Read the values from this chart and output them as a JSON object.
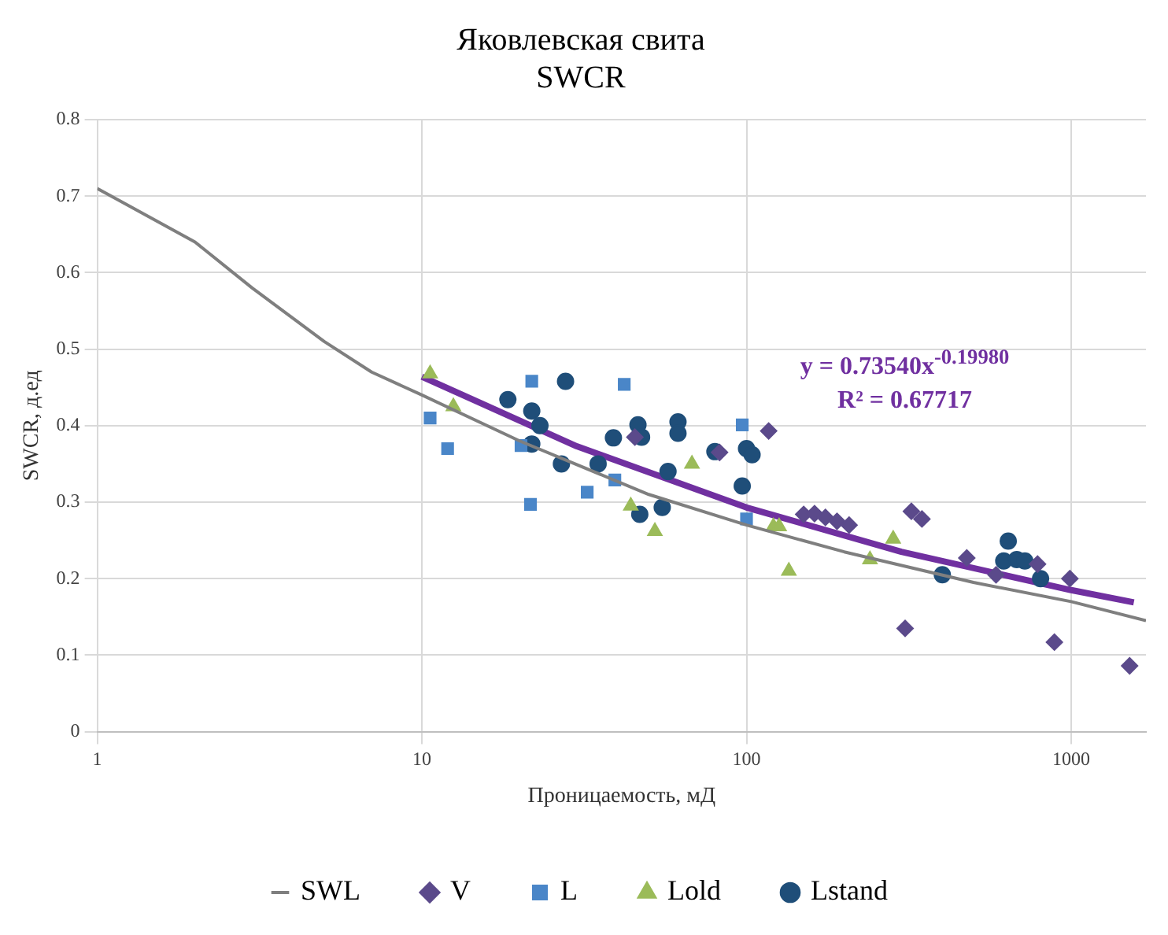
{
  "chart_data": {
    "type": "scatter",
    "title": "Яковлевская свита",
    "subtitle": "SWCR",
    "xlabel": "Проницаемость, мД",
    "ylabel": "SWCR, д.ед",
    "log": "x",
    "xlim": [
      1,
      1700
    ],
    "xticks": [
      1,
      10,
      100,
      1000
    ],
    "ylim": [
      0,
      0.8
    ],
    "yticks": [
      0,
      {
        "value": 0.1,
        "label": "0.1"
      },
      {
        "value": 0.2,
        "label": "0.2"
      },
      {
        "value": 0.3,
        "label": "0.3"
      },
      {
        "value": 0.4,
        "label": "0.4"
      },
      {
        "value": 0.5,
        "label": "0.5"
      },
      {
        "value": 0.6,
        "label": "0.6"
      },
      {
        "value": 0.7,
        "label": "0.7"
      },
      {
        "value": 0.8,
        "label": "0.8"
      }
    ],
    "grid": true,
    "legend": "bottom",
    "annotations": [
      "y = 0.73540x$^{-0.19980}$\nR² = 0.67717"
    ],
    "series": [
      {
        "name": "SWL",
        "type": "line",
        "color": "#7f7f7f",
        "marker": "none",
        "x": [
          1,
          2,
          3,
          5,
          7,
          10,
          20,
          50,
          100,
          200,
          500,
          1000,
          1700
        ],
        "values": [
          0.71,
          0.64,
          0.58,
          0.51,
          0.47,
          0.44,
          0.38,
          0.31,
          0.27,
          0.235,
          0.195,
          0.17,
          0.145
        ]
      },
      {
        "name": "V",
        "color": "#5b4a8b",
        "marker": "diamond",
        "x": [
          117,
          45.3,
          150,
          162,
          175,
          190,
          207,
          322,
          347,
          308,
          477,
          788,
          991,
          888,
          1514,
          587,
          82.6
        ],
        "values": [
          0.393,
          0.385,
          0.284,
          0.285,
          0.28,
          0.275,
          0.27,
          0.288,
          0.278,
          0.135,
          0.227,
          0.219,
          0.2,
          0.117,
          0.086,
          0.205,
          0.365
        ]
      },
      {
        "name": "L",
        "color": "#4a86c8",
        "marker": "square",
        "x": [
          21.8,
          10.6,
          12,
          20.2,
          21.6,
          32.3,
          42,
          39.3,
          97,
          100
        ],
        "values": [
          0.458,
          0.41,
          0.37,
          0.374,
          0.297,
          0.313,
          0.454,
          0.329,
          0.401,
          0.278
        ]
      },
      {
        "name": "Lold",
        "color": "#9bbb59",
        "marker": "triangle",
        "x": [
          10.6,
          12.5,
          67.9,
          52.2,
          135,
          121,
          126,
          240,
          283,
          44
        ],
        "values": [
          0.468,
          0.425,
          0.35,
          0.262,
          0.21,
          0.268,
          0.268,
          0.225,
          0.252,
          0.295
        ]
      },
      {
        "name": "Lstand",
        "color": "#1f4e79",
        "marker": "circle",
        "x": [
          27.7,
          18.4,
          21.8,
          23.1,
          21.8,
          26.9,
          34.9,
          38.9,
          46.3,
          47.5,
          61.5,
          61.5,
          79.9,
          100,
          104,
          97,
          57.3,
          55,
          46.9,
          640,
          620,
          680,
          720,
          401,
          805
        ],
        "values": [
          0.458,
          0.434,
          0.419,
          0.4,
          0.376,
          0.35,
          0.35,
          0.384,
          0.401,
          0.385,
          0.405,
          0.39,
          0.366,
          0.37,
          0.362,
          0.321,
          0.34,
          0.293,
          0.284,
          0.249,
          0.223,
          0.225,
          0.223,
          0.205,
          0.2
        ]
      },
      {
        "type": "line",
        "color": "#7030a0",
        "marker": "none",
        "x": [
          10,
          30,
          100,
          300,
          1000,
          1560
        ],
        "values": [
          0.464,
          0.373,
          0.293,
          0.235,
          0.185,
          0.169
        ]
      }
    ]
  }
}
